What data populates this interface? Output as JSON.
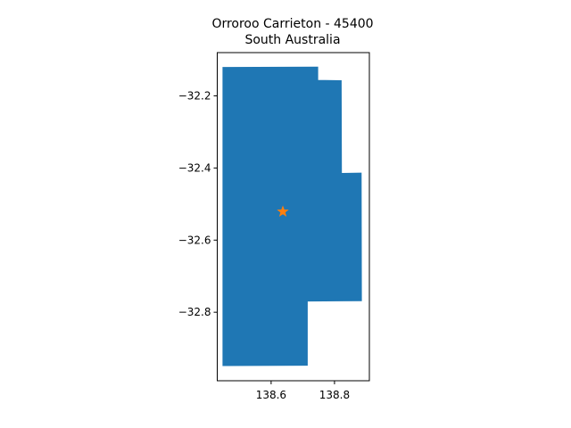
{
  "chart_data": {
    "type": "map",
    "title_lines": [
      "Orroroo Carrieton - 45400",
      "South Australia"
    ],
    "xlim": [
      138.43,
      138.91
    ],
    "ylim": [
      -32.99,
      -32.08
    ],
    "x_ticks": [
      {
        "value": 138.6,
        "label": "138.6"
      },
      {
        "value": 138.8,
        "label": "138.8"
      }
    ],
    "y_ticks": [
      {
        "value": -32.2,
        "label": "−32.2"
      },
      {
        "value": -32.4,
        "label": "−32.4"
      },
      {
        "value": -32.6,
        "label": "−32.6"
      },
      {
        "value": -32.8,
        "label": "−32.8"
      }
    ],
    "region": {
      "color": "#1f77b4",
      "boundary": [
        [
          138.448,
          -32.121
        ],
        [
          138.747,
          -32.12
        ],
        [
          138.747,
          -32.157
        ],
        [
          138.821,
          -32.158
        ],
        [
          138.822,
          -32.415
        ],
        [
          138.884,
          -32.414
        ],
        [
          138.885,
          -32.768
        ],
        [
          138.714,
          -32.769
        ],
        [
          138.714,
          -32.947
        ],
        [
          138.448,
          -32.948
        ]
      ]
    },
    "centroid": {
      "lon": 138.637,
      "lat": -32.521,
      "color": "#ff7f0e",
      "marker": "star"
    },
    "grid": false,
    "legend": "none"
  }
}
